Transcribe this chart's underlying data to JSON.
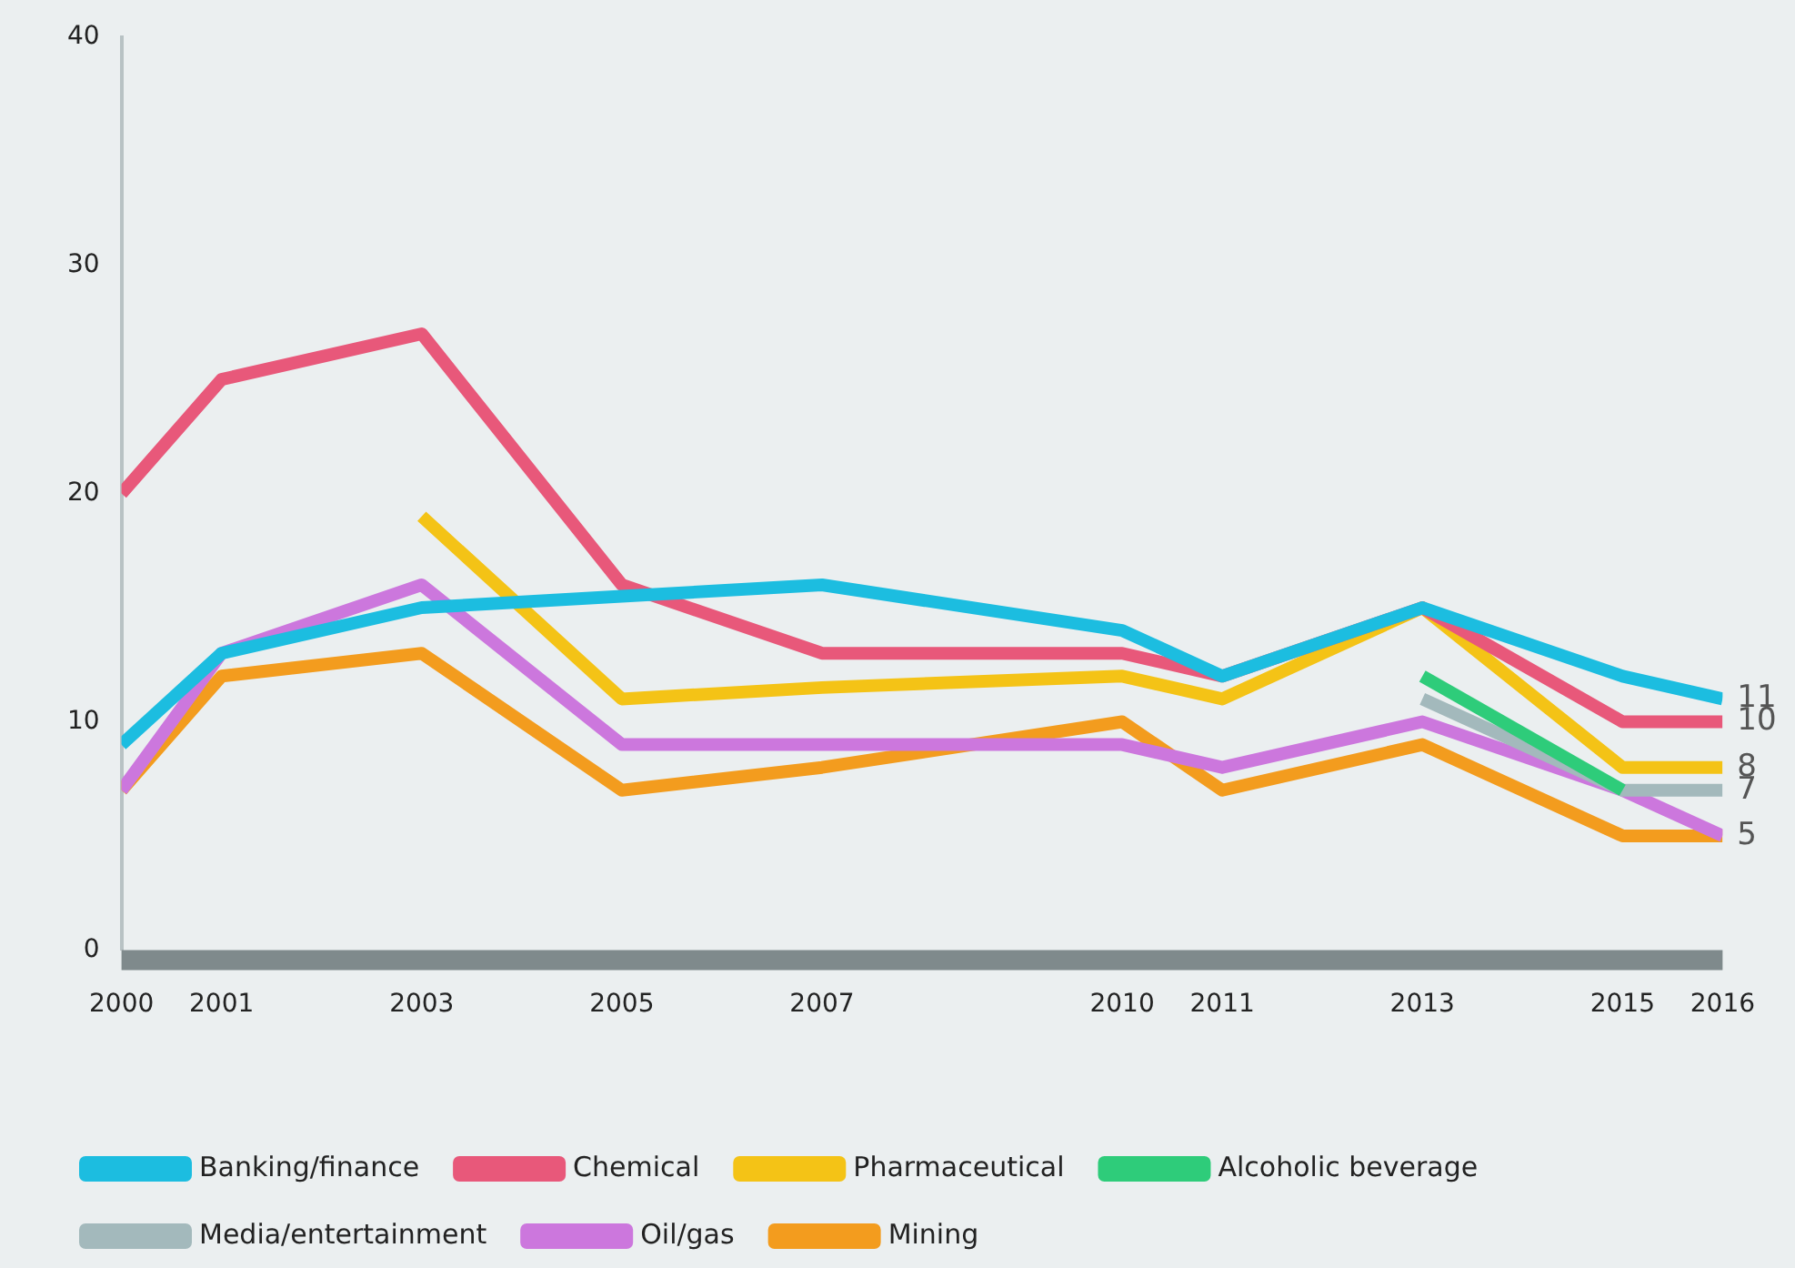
{
  "chart_data": {
    "type": "line",
    "x": [
      2000,
      2001,
      2003,
      2005,
      2007,
      2010,
      2011,
      2013,
      2015,
      2016
    ],
    "xlim": [
      2000,
      2016
    ],
    "xticks": [
      2000,
      2001,
      2003,
      2005,
      2007,
      2010,
      2011,
      2013,
      2015,
      2016
    ],
    "ylim": [
      0,
      40
    ],
    "yticks": [
      0,
      10,
      20,
      30,
      40
    ],
    "grid": false,
    "legend": "bottom",
    "marker": "none",
    "line_style": "solid",
    "series": [
      {
        "name": "Banking/finance",
        "color": "#1cbde0",
        "values": [
          9,
          13,
          15,
          15.5,
          16,
          14,
          12,
          15,
          12,
          11
        ],
        "value_labels": [
          null,
          null,
          null,
          null,
          null,
          null,
          null,
          null,
          null,
          "11"
        ]
      },
      {
        "name": "Chemical",
        "color": "#e8587a",
        "values": [
          20,
          25,
          27,
          16,
          13,
          13,
          12,
          15,
          10,
          10
        ],
        "value_labels": [
          null,
          null,
          null,
          null,
          null,
          null,
          null,
          null,
          null,
          "10"
        ]
      },
      {
        "name": "Pharmaceutical",
        "color": "#f4c316",
        "values": [
          null,
          null,
          19,
          11,
          11.5,
          12,
          11,
          15,
          8,
          8
        ],
        "value_labels": [
          null,
          null,
          null,
          null,
          null,
          null,
          null,
          null,
          null,
          "8"
        ]
      },
      {
        "name": "Alcoholic beverage",
        "color": "#2ecc7a",
        "values": [
          null,
          null,
          null,
          null,
          null,
          null,
          null,
          12,
          7,
          null
        ],
        "value_labels": [
          null,
          null,
          null,
          null,
          null,
          null,
          null,
          null,
          null,
          null
        ]
      },
      {
        "name": "Media/entertainment",
        "color": "#a3b9bc",
        "values": [
          null,
          null,
          null,
          null,
          null,
          null,
          null,
          11,
          7,
          7
        ],
        "value_labels": [
          null,
          null,
          null,
          null,
          null,
          null,
          null,
          null,
          null,
          "7"
        ]
      },
      {
        "name": "Oil/gas",
        "color": "#cc77dd",
        "values": [
          7,
          13,
          16,
          9,
          9,
          9,
          8,
          10,
          7,
          5
        ],
        "value_labels": [
          null,
          null,
          null,
          null,
          null,
          null,
          null,
          null,
          null,
          null
        ]
      },
      {
        "name": "Mining",
        "color": "#f39c1e",
        "values": [
          7,
          12,
          13,
          7,
          8,
          10,
          7,
          9,
          5,
          5
        ],
        "value_labels": [
          null,
          null,
          null,
          null,
          null,
          null,
          null,
          null,
          null,
          "5"
        ]
      }
    ]
  }
}
